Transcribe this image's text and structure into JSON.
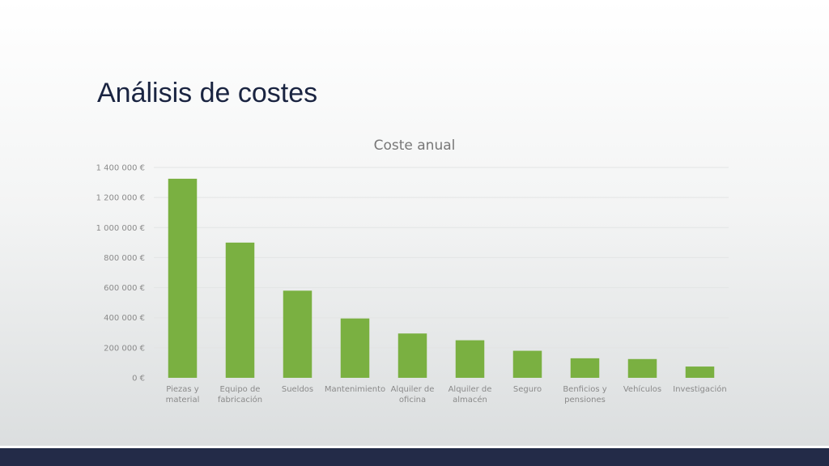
{
  "slide": {
    "title": "Análisis de costes"
  },
  "colors": {
    "bar": "#7ab041",
    "grid": "#e3e4e4",
    "axis_text": "#8a8a8a",
    "title_text": "#1a2441",
    "footer": "#232b48"
  },
  "chart_data": {
    "type": "bar",
    "title": "Coste anual",
    "xlabel": "",
    "ylabel": "",
    "ylim": [
      0,
      1400000
    ],
    "yticks": [
      0,
      200000,
      400000,
      600000,
      800000,
      1000000,
      1200000,
      1400000
    ],
    "ytick_labels": [
      "0 €",
      "200 000 €",
      "400 000 €",
      "600 000 €",
      "800 000 €",
      "1 000 000 €",
      "1 200 000 €",
      "1 400 000 €"
    ],
    "grid": true,
    "legend": "none",
    "categories": [
      [
        "Piezas y",
        "material"
      ],
      [
        "Equipo de",
        "fabricación"
      ],
      [
        "Sueldos"
      ],
      [
        "Mantenimiento"
      ],
      [
        "Alquiler de",
        "oficina"
      ],
      [
        "Alquiler de",
        "almacén"
      ],
      [
        "Seguro"
      ],
      [
        "Benficios y",
        "pensiones"
      ],
      [
        "Vehículos"
      ],
      [
        "Investigación"
      ]
    ],
    "values": [
      1325000,
      900000,
      580000,
      395000,
      295000,
      250000,
      180000,
      130000,
      125000,
      75000
    ]
  }
}
